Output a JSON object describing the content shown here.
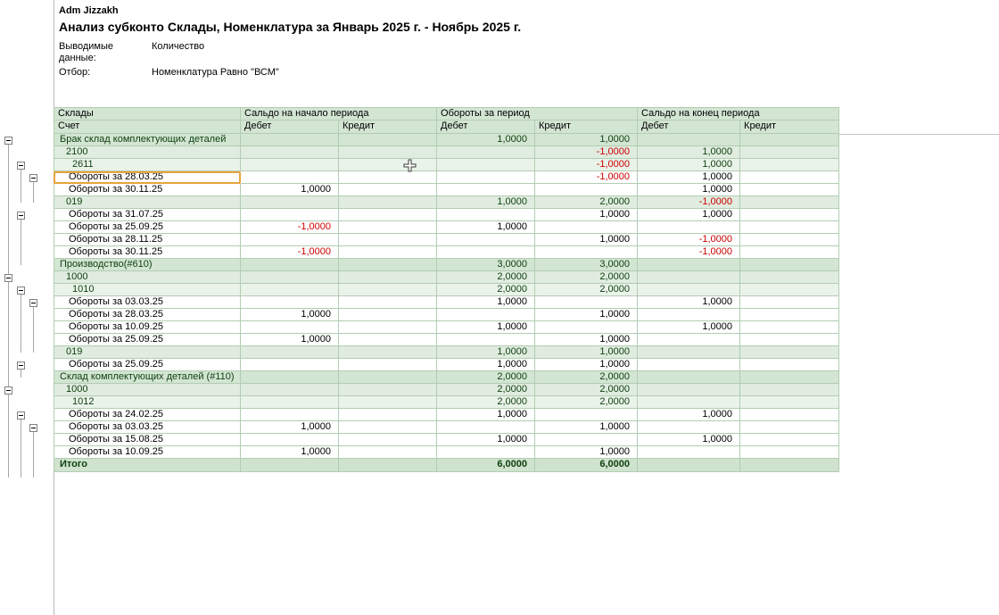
{
  "report": {
    "user": "Adm Jizzakh",
    "title": "Анализ субконто Склады, Номенклатура за Январь 2025 г. - Ноябрь 2025 г.",
    "params": [
      {
        "label": "Выводимые данные:",
        "value": "Количество"
      },
      {
        "label": "Отбор:",
        "value": "Номенклатура Равно \"ВСМ\""
      }
    ]
  },
  "colors": {
    "header_bg": "#d3e5d3",
    "group1_bg": "#dfecdf",
    "group2_bg": "#eaf3ea",
    "total_bg": "#cfe3cf",
    "group_text": "#0e3f0e",
    "negative_text": "#cc0000",
    "selection_border": "#e8a33d",
    "grid_line": "#b2cdb2"
  },
  "table": {
    "header": {
      "col1_row1": "Склады",
      "col1_row2": "Счет",
      "groups": [
        "Сальдо на начало периода",
        "Обороты за период",
        "Сальдо на конец периода"
      ],
      "sub": [
        "Дебет",
        "Кредит"
      ]
    },
    "rows": [
      {
        "level": 0,
        "label": "Брак склад комплектующих деталей",
        "values": [
          "",
          "",
          "1,0000",
          "1,0000",
          "",
          ""
        ]
      },
      {
        "level": 1,
        "label": "2100",
        "values": [
          "",
          "",
          "",
          "-1,0000",
          "1,0000",
          ""
        ]
      },
      {
        "level": 2,
        "label": "2611",
        "values": [
          "",
          "",
          "",
          "-1,0000",
          "1,0000",
          ""
        ]
      },
      {
        "level": 3,
        "label": "Обороты за 28.03.25",
        "selected": true,
        "values": [
          "",
          "",
          "",
          "-1,0000",
          "1,0000",
          ""
        ]
      },
      {
        "level": 3,
        "label": "Обороты за 30.11.25",
        "values": [
          "1,0000",
          "",
          "",
          "",
          "1,0000",
          ""
        ]
      },
      {
        "level": 1,
        "label": "019",
        "values": [
          "",
          "",
          "1,0000",
          "2,0000",
          "-1,0000",
          ""
        ]
      },
      {
        "level": 3,
        "label": "Обороты за 31.07.25",
        "values": [
          "",
          "",
          "",
          "1,0000",
          "1,0000",
          ""
        ]
      },
      {
        "level": 3,
        "label": "Обороты за 25.09.25",
        "values": [
          "-1,0000",
          "",
          "1,0000",
          "",
          "",
          ""
        ]
      },
      {
        "level": 3,
        "label": "Обороты за 28.11.25",
        "values": [
          "",
          "",
          "",
          "1,0000",
          "-1,0000",
          ""
        ]
      },
      {
        "level": 3,
        "label": "Обороты за 30.11.25",
        "values": [
          "-1,0000",
          "",
          "",
          "",
          "-1,0000",
          ""
        ]
      },
      {
        "level": 0,
        "label": "Производство(#610)",
        "values": [
          "",
          "",
          "3,0000",
          "3,0000",
          "",
          ""
        ]
      },
      {
        "level": 1,
        "label": "1000",
        "values": [
          "",
          "",
          "2,0000",
          "2,0000",
          "",
          ""
        ]
      },
      {
        "level": 2,
        "label": "1010",
        "values": [
          "",
          "",
          "2,0000",
          "2,0000",
          "",
          ""
        ]
      },
      {
        "level": 3,
        "label": "Обороты за 03.03.25",
        "values": [
          "",
          "",
          "1,0000",
          "",
          "1,0000",
          ""
        ]
      },
      {
        "level": 3,
        "label": "Обороты за 28.03.25",
        "values": [
          "1,0000",
          "",
          "",
          "1,0000",
          "",
          ""
        ]
      },
      {
        "level": 3,
        "label": "Обороты за 10.09.25",
        "values": [
          "",
          "",
          "1,0000",
          "",
          "1,0000",
          ""
        ]
      },
      {
        "level": 3,
        "label": "Обороты за 25.09.25",
        "values": [
          "1,0000",
          "",
          "",
          "1,0000",
          "",
          ""
        ]
      },
      {
        "level": 1,
        "label": "019",
        "values": [
          "",
          "",
          "1,0000",
          "1,0000",
          "",
          ""
        ]
      },
      {
        "level": 3,
        "label": "Обороты за 25.09.25",
        "values": [
          "",
          "",
          "1,0000",
          "1,0000",
          "",
          ""
        ]
      },
      {
        "level": 0,
        "label": "Склад комплектующих деталей (#110)",
        "values": [
          "",
          "",
          "2,0000",
          "2,0000",
          "",
          ""
        ]
      },
      {
        "level": 1,
        "label": "1000",
        "values": [
          "",
          "",
          "2,0000",
          "2,0000",
          "",
          ""
        ]
      },
      {
        "level": 2,
        "label": "1012",
        "values": [
          "",
          "",
          "2,0000",
          "2,0000",
          "",
          ""
        ]
      },
      {
        "level": 3,
        "label": "Обороты за 24.02.25",
        "values": [
          "",
          "",
          "1,0000",
          "",
          "1,0000",
          ""
        ]
      },
      {
        "level": 3,
        "label": "Обороты за 03.03.25",
        "values": [
          "1,0000",
          "",
          "",
          "1,0000",
          "",
          ""
        ]
      },
      {
        "level": 3,
        "label": "Обороты за 15.08.25",
        "values": [
          "",
          "",
          "1,0000",
          "",
          "1,0000",
          ""
        ]
      },
      {
        "level": 3,
        "label": "Обороты за 10.09.25",
        "values": [
          "1,0000",
          "",
          "",
          "1,0000",
          "",
          ""
        ]
      },
      {
        "level": "total",
        "label": "Итого",
        "values": [
          "",
          "",
          "6,0000",
          "6,0000",
          "",
          ""
        ]
      }
    ]
  }
}
